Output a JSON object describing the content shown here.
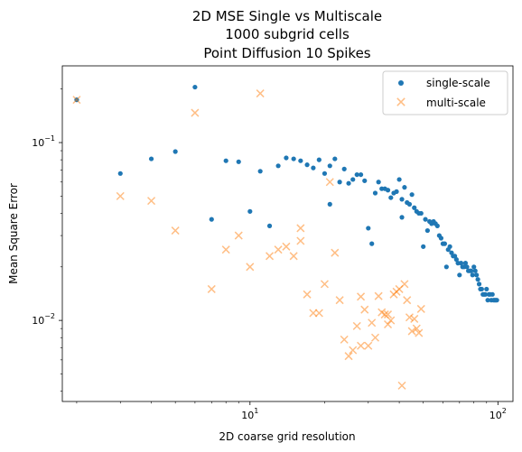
{
  "chart_data": {
    "type": "scatter",
    "title": [
      "2D MSE Single vs Multiscale",
      "1000 subgrid cells",
      "Point Diffusion 10 Spikes"
    ],
    "xlabel": "2D coarse grid resolution",
    "ylabel": "Mean Square Error",
    "xscale": "log",
    "yscale": "log",
    "xlim": [
      1.75,
      115
    ],
    "ylim": [
      0.0035,
      0.27
    ],
    "grid": false,
    "legend_position": "top-right",
    "x_ticks": [
      {
        "value": 10,
        "label": "10",
        "base": "10",
        "exp": "1"
      },
      {
        "value": 100,
        "label": "100",
        "base": "10",
        "exp": "2"
      }
    ],
    "y_ticks": [
      {
        "value": 0.01,
        "label": "0.01",
        "base": "10",
        "exp": "−2"
      },
      {
        "value": 0.1,
        "label": "0.1",
        "base": "10",
        "exp": "−1"
      }
    ],
    "series": [
      {
        "name": "single-scale",
        "marker": "dot",
        "color": "#1f77b4",
        "points": [
          [
            2,
            0.174
          ],
          [
            3,
            0.067
          ],
          [
            4,
            0.081
          ],
          [
            5,
            0.089
          ],
          [
            6,
            0.205
          ],
          [
            7,
            0.037
          ],
          [
            8,
            0.079
          ],
          [
            9,
            0.078
          ],
          [
            10,
            0.041
          ],
          [
            11,
            0.069
          ],
          [
            12,
            0.034
          ],
          [
            13,
            0.074
          ],
          [
            14,
            0.082
          ],
          [
            15,
            0.081
          ],
          [
            16,
            0.079
          ],
          [
            17,
            0.075
          ],
          [
            18,
            0.072
          ],
          [
            19,
            0.08
          ],
          [
            20,
            0.067
          ],
          [
            21,
            0.074
          ],
          [
            21,
            0.045
          ],
          [
            22,
            0.081
          ],
          [
            23,
            0.06
          ],
          [
            24,
            0.071
          ],
          [
            25,
            0.059
          ],
          [
            26,
            0.062
          ],
          [
            27,
            0.066
          ],
          [
            28,
            0.066
          ],
          [
            29,
            0.061
          ],
          [
            30,
            0.033
          ],
          [
            31,
            0.027
          ],
          [
            32,
            0.052
          ],
          [
            33,
            0.06
          ],
          [
            34,
            0.055
          ],
          [
            35,
            0.055
          ],
          [
            36,
            0.054
          ],
          [
            37,
            0.049
          ],
          [
            38,
            0.052
          ],
          [
            39,
            0.053
          ],
          [
            40,
            0.062
          ],
          [
            41,
            0.048
          ],
          [
            41,
            0.038
          ],
          [
            42,
            0.056
          ],
          [
            43,
            0.046
          ],
          [
            44,
            0.045
          ],
          [
            45,
            0.051
          ],
          [
            46,
            0.043
          ],
          [
            47,
            0.041
          ],
          [
            48,
            0.04
          ],
          [
            49,
            0.04
          ],
          [
            50,
            0.026
          ],
          [
            51,
            0.037
          ],
          [
            52,
            0.032
          ],
          [
            53,
            0.036
          ],
          [
            54,
            0.035
          ],
          [
            55,
            0.036
          ],
          [
            56,
            0.035
          ],
          [
            57,
            0.034
          ],
          [
            58,
            0.03
          ],
          [
            59,
            0.029
          ],
          [
            60,
            0.027
          ],
          [
            61,
            0.027
          ],
          [
            62,
            0.02
          ],
          [
            63,
            0.025
          ],
          [
            64,
            0.026
          ],
          [
            65,
            0.024
          ],
          [
            66,
            0.023
          ],
          [
            67,
            0.023
          ],
          [
            68,
            0.022
          ],
          [
            69,
            0.021
          ],
          [
            70,
            0.018
          ],
          [
            71,
            0.021
          ],
          [
            72,
            0.02
          ],
          [
            73,
            0.02
          ],
          [
            74,
            0.021
          ],
          [
            75,
            0.02
          ],
          [
            76,
            0.019
          ],
          [
            77,
            0.019
          ],
          [
            78,
            0.019
          ],
          [
            79,
            0.018
          ],
          [
            80,
            0.02
          ],
          [
            81,
            0.019
          ],
          [
            82,
            0.018
          ],
          [
            83,
            0.017
          ],
          [
            84,
            0.016
          ],
          [
            85,
            0.015
          ],
          [
            86,
            0.015
          ],
          [
            87,
            0.014
          ],
          [
            88,
            0.014
          ],
          [
            89,
            0.014
          ],
          [
            90,
            0.015
          ],
          [
            91,
            0.013
          ],
          [
            92,
            0.014
          ],
          [
            93,
            0.014
          ],
          [
            94,
            0.013
          ],
          [
            95,
            0.014
          ],
          [
            96,
            0.013
          ],
          [
            97,
            0.013
          ],
          [
            98,
            0.013
          ],
          [
            99,
            0.013
          ]
        ]
      },
      {
        "name": "multi-scale",
        "marker": "x",
        "color": "#ff7f0e",
        "alpha": 0.5,
        "points": [
          [
            2,
            0.174
          ],
          [
            3,
            0.05
          ],
          [
            4,
            0.047
          ],
          [
            5,
            0.032
          ],
          [
            6,
            0.147
          ],
          [
            7,
            0.015
          ],
          [
            8,
            0.025
          ],
          [
            9,
            0.03
          ],
          [
            10,
            0.02
          ],
          [
            11,
            0.189
          ],
          [
            12,
            0.023
          ],
          [
            13,
            0.025
          ],
          [
            14,
            0.026
          ],
          [
            15,
            0.023
          ],
          [
            16,
            0.033
          ],
          [
            16,
            0.028
          ],
          [
            17,
            0.014
          ],
          [
            18,
            0.011
          ],
          [
            19,
            0.011
          ],
          [
            20,
            0.016
          ],
          [
            21,
            0.06
          ],
          [
            22,
            0.024
          ],
          [
            23,
            0.013
          ],
          [
            24,
            0.0078
          ],
          [
            25,
            0.0063
          ],
          [
            26,
            0.0068
          ],
          [
            27,
            0.0093
          ],
          [
            28,
            0.0072
          ],
          [
            28,
            0.0136
          ],
          [
            29,
            0.0115
          ],
          [
            30,
            0.0072
          ],
          [
            31,
            0.0097
          ],
          [
            32,
            0.008
          ],
          [
            33,
            0.0137
          ],
          [
            34,
            0.0111
          ],
          [
            35,
            0.0108
          ],
          [
            36,
            0.0095
          ],
          [
            36,
            0.0108
          ],
          [
            37,
            0.01
          ],
          [
            38,
            0.014
          ],
          [
            39,
            0.0145
          ],
          [
            40,
            0.015
          ],
          [
            41,
            0.0043
          ],
          [
            42,
            0.016
          ],
          [
            43,
            0.013
          ],
          [
            44,
            0.0104
          ],
          [
            45,
            0.0087
          ],
          [
            46,
            0.0102
          ],
          [
            47,
            0.009
          ],
          [
            48,
            0.0085
          ],
          [
            49,
            0.0116
          ]
        ]
      }
    ]
  }
}
